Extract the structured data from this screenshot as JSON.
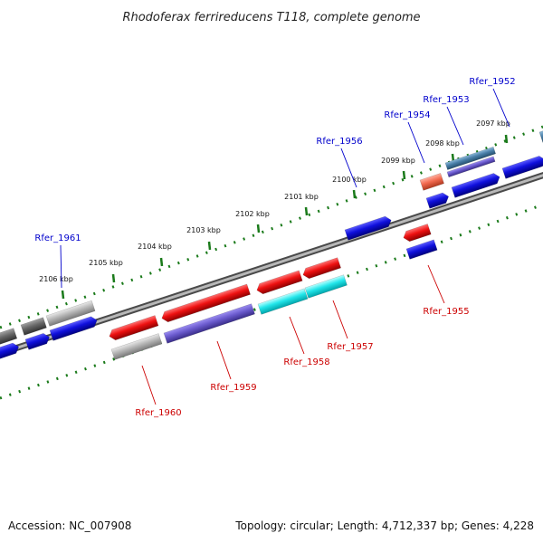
{
  "title": "Rhodoferax ferrireducens T118, complete genome",
  "footer": {
    "accession": "Accession: NC_007908",
    "summary": "Topology: circular; Length: 4,712,337 bp; Genes: 4,228"
  },
  "scale_labels": [
    "2097 kbp",
    "2098 kbp",
    "2099 kbp",
    "2100 kbp",
    "2101 kbp",
    "2102 kbp",
    "2103 kbp",
    "2104 kbp",
    "2105 kbp",
    "2106 kbp"
  ],
  "gene_labels": {
    "forward": [
      "Rfer_1952",
      "Rfer_1953",
      "Rfer_1954",
      "Rfer_1956",
      "Rfer_1961"
    ],
    "reverse": [
      "Rfer_1955",
      "Rfer_1957",
      "Rfer_1958",
      "Rfer_1959",
      "Rfer_1960"
    ]
  },
  "colors": {
    "forward_label": "#0000cc",
    "reverse_label": "#cc0000",
    "backbone": "#888888",
    "tick_ring": "#1a7a1a",
    "cds_blue": "#1010dd",
    "cds_red": "#ee1111",
    "cds_cyan": "#22e6ea",
    "cds_violet": "#6a5acd",
    "cds_grey": "#b5b5b5",
    "cds_dark_grey": "#666666",
    "cds_salmon": "#f26a50",
    "cds_steel": "#4a7fa8"
  }
}
